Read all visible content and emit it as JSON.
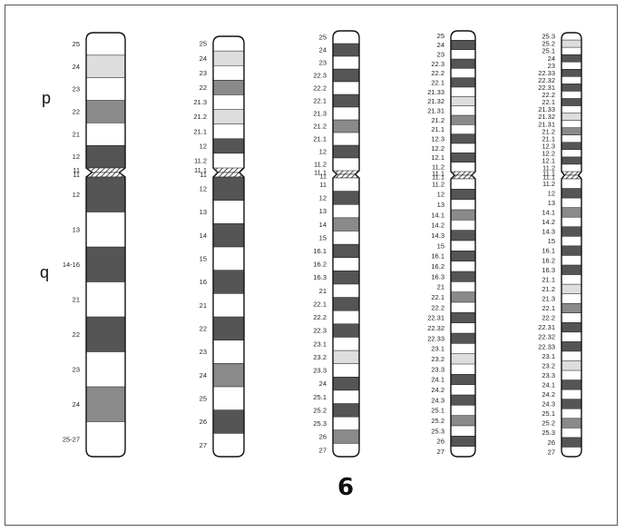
{
  "chromosome_label": "6",
  "arm_labels": {
    "p": "p",
    "q": "q"
  },
  "colors": {
    "dark": "#555555",
    "medium": "#8a8a8a",
    "light": "#dddddd",
    "white": "#ffffff",
    "outline": "#111111"
  },
  "ideograms": [
    {
      "resolution": "column-1",
      "bands": [
        {
          "name": "25",
          "stain": "white"
        },
        {
          "name": "24",
          "stain": "light"
        },
        {
          "name": "23",
          "stain": "white"
        },
        {
          "name": "22",
          "stain": "medium"
        },
        {
          "name": "21",
          "stain": "white"
        },
        {
          "name": "12",
          "stain": "dark"
        },
        {
          "name": "11",
          "stain": "centromere"
        },
        {
          "name": "11",
          "stain": "centromere"
        },
        {
          "name": "12",
          "stain": "dark"
        },
        {
          "name": "13",
          "stain": "white"
        },
        {
          "name": "14-16",
          "stain": "dark"
        },
        {
          "name": "21",
          "stain": "white"
        },
        {
          "name": "22",
          "stain": "dark"
        },
        {
          "name": "23",
          "stain": "white"
        },
        {
          "name": "24",
          "stain": "medium"
        },
        {
          "name": "25-27",
          "stain": "white"
        }
      ]
    },
    {
      "resolution": "column-2",
      "bands": [
        {
          "name": "25",
          "stain": "white"
        },
        {
          "name": "24",
          "stain": "light"
        },
        {
          "name": "23",
          "stain": "white"
        },
        {
          "name": "22",
          "stain": "medium"
        },
        {
          "name": "21.3",
          "stain": "white"
        },
        {
          "name": "21.2",
          "stain": "light"
        },
        {
          "name": "21.1",
          "stain": "white"
        },
        {
          "name": "12",
          "stain": "dark"
        },
        {
          "name": "11.2",
          "stain": "white"
        },
        {
          "name": "11.1",
          "stain": "centromere"
        },
        {
          "name": "11",
          "stain": "centromere"
        },
        {
          "name": "12",
          "stain": "dark"
        },
        {
          "name": "13",
          "stain": "white"
        },
        {
          "name": "14",
          "stain": "dark"
        },
        {
          "name": "15",
          "stain": "white"
        },
        {
          "name": "16",
          "stain": "dark"
        },
        {
          "name": "21",
          "stain": "white"
        },
        {
          "name": "22",
          "stain": "dark"
        },
        {
          "name": "23",
          "stain": "white"
        },
        {
          "name": "24",
          "stain": "medium"
        },
        {
          "name": "25",
          "stain": "white"
        },
        {
          "name": "26",
          "stain": "dark"
        },
        {
          "name": "27",
          "stain": "white"
        }
      ]
    },
    {
      "resolution": "column-3",
      "bands": [
        {
          "name": "25",
          "stain": "white"
        },
        {
          "name": "24",
          "stain": "dark"
        },
        {
          "name": "23",
          "stain": "white"
        },
        {
          "name": "22.3",
          "stain": "dark"
        },
        {
          "name": "22.2",
          "stain": "white"
        },
        {
          "name": "22.1",
          "stain": "dark"
        },
        {
          "name": "21.3",
          "stain": "white"
        },
        {
          "name": "21.2",
          "stain": "medium"
        },
        {
          "name": "21.1",
          "stain": "white"
        },
        {
          "name": "12",
          "stain": "dark"
        },
        {
          "name": "11.2",
          "stain": "white"
        },
        {
          "name": "11.1",
          "stain": "centromere"
        },
        {
          "name": "11",
          "stain": "centromere"
        },
        {
          "name": "11",
          "stain": "white"
        },
        {
          "name": "12",
          "stain": "dark"
        },
        {
          "name": "13",
          "stain": "white"
        },
        {
          "name": "14",
          "stain": "medium"
        },
        {
          "name": "15",
          "stain": "white"
        },
        {
          "name": "16.1",
          "stain": "dark"
        },
        {
          "name": "16.2",
          "stain": "white"
        },
        {
          "name": "16.3",
          "stain": "dark"
        },
        {
          "name": "21",
          "stain": "white"
        },
        {
          "name": "22.1",
          "stain": "dark"
        },
        {
          "name": "22.2",
          "stain": "white"
        },
        {
          "name": "22.3",
          "stain": "dark"
        },
        {
          "name": "23.1",
          "stain": "white"
        },
        {
          "name": "23.2",
          "stain": "light"
        },
        {
          "name": "23.3",
          "stain": "white"
        },
        {
          "name": "24",
          "stain": "dark"
        },
        {
          "name": "25.1",
          "stain": "white"
        },
        {
          "name": "25.2",
          "stain": "dark"
        },
        {
          "name": "25.3",
          "stain": "white"
        },
        {
          "name": "26",
          "stain": "medium"
        },
        {
          "name": "27",
          "stain": "white"
        }
      ]
    },
    {
      "resolution": "column-4",
      "bands": [
        {
          "name": "25",
          "stain": "white"
        },
        {
          "name": "24",
          "stain": "dark"
        },
        {
          "name": "23",
          "stain": "white"
        },
        {
          "name": "22.3",
          "stain": "dark"
        },
        {
          "name": "22.2",
          "stain": "white"
        },
        {
          "name": "22.1",
          "stain": "dark"
        },
        {
          "name": "21.33",
          "stain": "white"
        },
        {
          "name": "21.32",
          "stain": "light"
        },
        {
          "name": "21.31",
          "stain": "white"
        },
        {
          "name": "21.2",
          "stain": "medium"
        },
        {
          "name": "21.1",
          "stain": "white"
        },
        {
          "name": "12.3",
          "stain": "dark"
        },
        {
          "name": "12.2",
          "stain": "white"
        },
        {
          "name": "12.1",
          "stain": "dark"
        },
        {
          "name": "11.2",
          "stain": "white"
        },
        {
          "name": "11.1",
          "stain": "centromere"
        },
        {
          "name": "11.1",
          "stain": "centromere"
        },
        {
          "name": "11.2",
          "stain": "white"
        },
        {
          "name": "12",
          "stain": "dark"
        },
        {
          "name": "13",
          "stain": "white"
        },
        {
          "name": "14.1",
          "stain": "medium"
        },
        {
          "name": "14.2",
          "stain": "white"
        },
        {
          "name": "14.3",
          "stain": "dark"
        },
        {
          "name": "15",
          "stain": "white"
        },
        {
          "name": "16.1",
          "stain": "dark"
        },
        {
          "name": "16.2",
          "stain": "white"
        },
        {
          "name": "16.3",
          "stain": "dark"
        },
        {
          "name": "21",
          "stain": "white"
        },
        {
          "name": "22.1",
          "stain": "medium"
        },
        {
          "name": "22.2",
          "stain": "white"
        },
        {
          "name": "22.31",
          "stain": "dark"
        },
        {
          "name": "22.32",
          "stain": "white"
        },
        {
          "name": "22.33",
          "stain": "dark"
        },
        {
          "name": "23.1",
          "stain": "white"
        },
        {
          "name": "23.2",
          "stain": "light"
        },
        {
          "name": "23.3",
          "stain": "white"
        },
        {
          "name": "24.1",
          "stain": "dark"
        },
        {
          "name": "24.2",
          "stain": "white"
        },
        {
          "name": "24.3",
          "stain": "dark"
        },
        {
          "name": "25.1",
          "stain": "white"
        },
        {
          "name": "25.2",
          "stain": "medium"
        },
        {
          "name": "25.3",
          "stain": "white"
        },
        {
          "name": "26",
          "stain": "dark"
        },
        {
          "name": "27",
          "stain": "white"
        }
      ]
    },
    {
      "resolution": "column-5",
      "bands": [
        {
          "name": "25.3",
          "stain": "white"
        },
        {
          "name": "25.2",
          "stain": "light"
        },
        {
          "name": "25.1",
          "stain": "white"
        },
        {
          "name": "24",
          "stain": "dark"
        },
        {
          "name": "23",
          "stain": "white"
        },
        {
          "name": "22.33",
          "stain": "dark"
        },
        {
          "name": "22.32",
          "stain": "white"
        },
        {
          "name": "22.31",
          "stain": "dark"
        },
        {
          "name": "22.2",
          "stain": "white"
        },
        {
          "name": "22.1",
          "stain": "dark"
        },
        {
          "name": "21.33",
          "stain": "white"
        },
        {
          "name": "21.32",
          "stain": "light"
        },
        {
          "name": "21.31",
          "stain": "white"
        },
        {
          "name": "21.2",
          "stain": "medium"
        },
        {
          "name": "21.1",
          "stain": "white"
        },
        {
          "name": "12.3",
          "stain": "dark"
        },
        {
          "name": "12.2",
          "stain": "white"
        },
        {
          "name": "12.1",
          "stain": "dark"
        },
        {
          "name": "11.2",
          "stain": "white"
        },
        {
          "name": "11.1",
          "stain": "centromere"
        },
        {
          "name": "11.1",
          "stain": "centromere"
        },
        {
          "name": "11.2",
          "stain": "white"
        },
        {
          "name": "12",
          "stain": "dark"
        },
        {
          "name": "13",
          "stain": "white"
        },
        {
          "name": "14.1",
          "stain": "medium"
        },
        {
          "name": "14.2",
          "stain": "white"
        },
        {
          "name": "14.3",
          "stain": "dark"
        },
        {
          "name": "15",
          "stain": "white"
        },
        {
          "name": "16.1",
          "stain": "dark"
        },
        {
          "name": "16.2",
          "stain": "white"
        },
        {
          "name": "16.3",
          "stain": "dark"
        },
        {
          "name": "21.1",
          "stain": "white"
        },
        {
          "name": "21.2",
          "stain": "light"
        },
        {
          "name": "21.3",
          "stain": "white"
        },
        {
          "name": "22.1",
          "stain": "medium"
        },
        {
          "name": "22.2",
          "stain": "white"
        },
        {
          "name": "22.31",
          "stain": "dark"
        },
        {
          "name": "22.32",
          "stain": "white"
        },
        {
          "name": "22.33",
          "stain": "dark"
        },
        {
          "name": "23.1",
          "stain": "white"
        },
        {
          "name": "23.2",
          "stain": "light"
        },
        {
          "name": "23.3",
          "stain": "white"
        },
        {
          "name": "24.1",
          "stain": "dark"
        },
        {
          "name": "24.2",
          "stain": "white"
        },
        {
          "name": "24.3",
          "stain": "dark"
        },
        {
          "name": "25.1",
          "stain": "white"
        },
        {
          "name": "25.2",
          "stain": "medium"
        },
        {
          "name": "25.3",
          "stain": "white"
        },
        {
          "name": "26",
          "stain": "dark"
        },
        {
          "name": "27",
          "stain": "white"
        }
      ]
    }
  ]
}
